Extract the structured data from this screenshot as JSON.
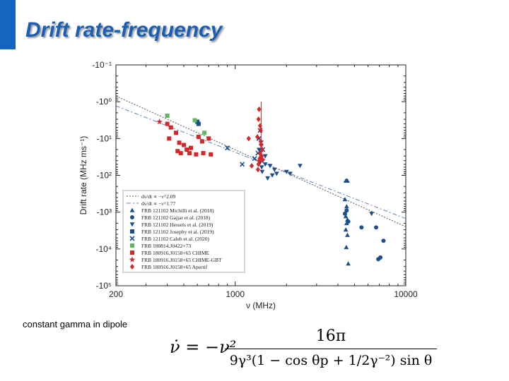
{
  "slide": {
    "title": "Drift rate-frequency",
    "accent_color": "#1565c0",
    "caption": "constant gamma in dipole",
    "formula": {
      "lhs": "ν̇ = −ν²",
      "numerator": "16π",
      "denominator": "9γ³(1 − cos θp + 1/2γ⁻²) sin θ"
    }
  },
  "chart_data": {
    "type": "scatter",
    "xscale": "log",
    "yscale": "symlog-negative",
    "xlabel": "ν (MHz)",
    "ylabel": "Drift rate (MHz ms⁻¹)",
    "xlim": [
      200,
      10000
    ],
    "x_ticks": [
      200,
      1000,
      10000
    ],
    "x_tick_labels": [
      "200",
      "1000",
      "10000"
    ],
    "y_ticks": [
      -0.1,
      -1,
      -10,
      -100,
      -1000,
      -10000,
      -100000
    ],
    "y_tick_labels": [
      "-10⁻¹",
      "-10⁰",
      "-10¹",
      "-10²",
      "-10³",
      "-10⁴",
      "-10⁵"
    ],
    "fit_lines": [
      {
        "name": "dν/dt ∝ −ν^2.09",
        "style": "dotted",
        "color": "#555555",
        "x": [
          200,
          10000
        ],
        "y": [
          -0.7,
          -2500
        ]
      },
      {
        "name": "dν/dt ∝ −ν^1.77",
        "style": "dashdot",
        "color": "#6080c0",
        "x": [
          200,
          10000
        ],
        "y": [
          -1.3,
          -1500
        ]
      }
    ],
    "legend": {
      "placement": "bottom-left"
    },
    "series": [
      {
        "name": "FRB 121102 Michilli et al. (2018)",
        "marker": "triangle-up",
        "color": "#1f4e8c",
        "points": [
          [
            4450,
            -140
          ],
          [
            4500,
            -140
          ],
          [
            4550,
            -140
          ],
          [
            4400,
            -450
          ],
          [
            4500,
            -700
          ],
          [
            4450,
            -1300
          ],
          [
            4550,
            -1600
          ],
          [
            4500,
            -2000
          ],
          [
            4450,
            -3000
          ],
          [
            4550,
            -4200
          ],
          [
            4480,
            -9000
          ],
          [
            4600,
            -25000
          ]
        ]
      },
      {
        "name": "FRB 121102 Gajjar et al. (2018)",
        "marker": "circle",
        "color": "#1f4e8c",
        "points": [
          [
            4400,
            -1100
          ],
          [
            4500,
            -900
          ],
          [
            4600,
            -1800
          ],
          [
            5500,
            -2600
          ],
          [
            6700,
            -2600
          ],
          [
            6900,
            -19000
          ],
          [
            7100,
            -17000
          ],
          [
            7400,
            -6000
          ]
        ]
      },
      {
        "name": "FRB 121102 Hessels et al. (2019)",
        "marker": "triangle-down",
        "color": "#1f4e8c",
        "points": [
          [
            1380,
            -20
          ],
          [
            1420,
            -22
          ],
          [
            1450,
            -40
          ],
          [
            1500,
            -50
          ],
          [
            1400,
            -45
          ],
          [
            1430,
            -60
          ],
          [
            1600,
            -55
          ],
          [
            1700,
            -70
          ],
          [
            1750,
            -90
          ],
          [
            1650,
            -100
          ],
          [
            2000,
            -80
          ],
          [
            2100,
            -90
          ],
          [
            1500,
            -30
          ],
          [
            1440,
            -80
          ],
          [
            1550,
            -120
          ],
          [
            2400,
            -55
          ],
          [
            6300,
            -1100
          ]
        ]
      },
      {
        "name": "FRB 121102 Josephy et al. (2019)",
        "marker": "square",
        "color": "#1f4e8c",
        "points": [
          [
            600,
            -3.5
          ],
          [
            610,
            -4
          ]
        ]
      },
      {
        "name": "FRB 121102 Caleb et al. (2020)",
        "marker": "x",
        "color": "#1f4e8c",
        "points": [
          [
            900,
            -18
          ],
          [
            1100,
            -50
          ],
          [
            1300,
            -35
          ],
          [
            1380,
            -10
          ],
          [
            1400,
            -6
          ],
          [
            1420,
            -13
          ],
          [
            1450,
            -20
          ],
          [
            1360,
            -25
          ]
        ]
      },
      {
        "name": "FRB 180814.J0422+73",
        "marker": "square",
        "color": "#5cb85c",
        "points": [
          [
            400,
            -2.4
          ],
          [
            580,
            -3.2
          ],
          [
            660,
            -7
          ]
        ]
      },
      {
        "name": "FRB 180916.J0158+65 CHIME",
        "marker": "square",
        "color": "#d62728",
        "points": [
          [
            400,
            -4
          ],
          [
            420,
            -5
          ],
          [
            410,
            -10
          ],
          [
            450,
            -7
          ],
          [
            470,
            -13
          ],
          [
            500,
            -15
          ],
          [
            550,
            -18
          ],
          [
            540,
            -25
          ],
          [
            590,
            -27
          ],
          [
            610,
            -9
          ],
          [
            640,
            -12
          ],
          [
            650,
            -25
          ],
          [
            700,
            -10
          ],
          [
            720,
            -27
          ],
          [
            520,
            -20
          ],
          [
            480,
            -25
          ],
          [
            460,
            -22
          ]
        ]
      },
      {
        "name": "FRB 180916.J0158+65 CHIME-GBT",
        "marker": "star",
        "color": "#d62728",
        "points": [
          [
            360,
            -3.5
          ]
        ]
      },
      {
        "name": "FRB 180916.J0158+65 Apertif",
        "marker": "diamond",
        "color": "#d62728",
        "points": [
          [
            1370,
            -3
          ],
          [
            1380,
            -1.6
          ],
          [
            1400,
            -4.5
          ],
          [
            1410,
            -6
          ],
          [
            1420,
            -15
          ],
          [
            1430,
            -30
          ],
          [
            1440,
            -20
          ],
          [
            1450,
            -38
          ],
          [
            1370,
            -50
          ],
          [
            1360,
            -70
          ],
          [
            1400,
            -25
          ],
          [
            1390,
            -35
          ],
          [
            1380,
            -40
          ],
          [
            1410,
            -12
          ],
          [
            1250,
            -55
          ],
          [
            1200,
            -10
          ],
          [
            1350,
            -9
          ],
          [
            1420,
            -30
          ]
        ]
      }
    ]
  }
}
